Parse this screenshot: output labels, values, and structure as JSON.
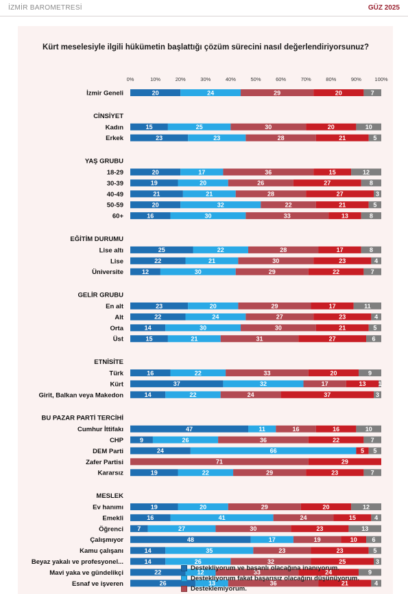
{
  "header": {
    "left": "İZMİR BAROMETRESİ",
    "right": "GÜZ 2025"
  },
  "chart_data": {
    "type": "bar",
    "orientation": "horizontal",
    "stacked": true,
    "title": "Kürt meselesiyle ilgili hükümetin başlattığı çözüm sürecini nasıl değerlendiriyorsunuz?",
    "xlim": [
      0,
      100
    ],
    "x_ticks": [
      "0%",
      "10%",
      "20%",
      "30%",
      "40%",
      "50%",
      "60%",
      "70%",
      "80%",
      "90%",
      "100%"
    ],
    "series": [
      {
        "name": "Destekliyorum ve başanlı olacağına inanıyorum.",
        "color": "#1f6fb2"
      },
      {
        "name": "Destekliyorum fakat başarısız olacağını düşünüyorum.",
        "color": "#2aa9e6"
      },
      {
        "name": "Desteklemiyorum.",
        "color": "#b24a52"
      },
      {
        "name": "",
        "color": "#c81e25"
      },
      {
        "name": "",
        "color": "#7f7f7f"
      }
    ],
    "groups": [
      {
        "title": "",
        "rows": [
          {
            "label": "İzmir Geneli",
            "values": [
              20,
              24,
              29,
              20,
              7
            ]
          }
        ]
      },
      {
        "title": "CİNSİYET",
        "rows": [
          {
            "label": "Kadın",
            "values": [
              15,
              25,
              30,
              20,
              10
            ]
          },
          {
            "label": "Erkek",
            "values": [
              23,
              23,
              28,
              21,
              5
            ]
          }
        ]
      },
      {
        "title": "YAŞ GRUBU",
        "rows": [
          {
            "label": "18-29",
            "values": [
              20,
              17,
              36,
              15,
              12
            ]
          },
          {
            "label": "30-39",
            "values": [
              19,
              20,
              26,
              27,
              8
            ]
          },
          {
            "label": "40-49",
            "values": [
              21,
              21,
              28,
              27,
              3
            ]
          },
          {
            "label": "50-59",
            "values": [
              20,
              32,
              22,
              21,
              5
            ]
          },
          {
            "label": "60+",
            "values": [
              16,
              30,
              33,
              13,
              8
            ]
          }
        ]
      },
      {
        "title": "EĞİTİM DURUMU",
        "rows": [
          {
            "label": "Lise altı",
            "values": [
              25,
              22,
              28,
              17,
              8
            ]
          },
          {
            "label": "Lise",
            "values": [
              22,
              21,
              30,
              23,
              4
            ]
          },
          {
            "label": "Üniversite",
            "values": [
              12,
              30,
              29,
              22,
              7
            ]
          }
        ]
      },
      {
        "title": "GELİR GRUBU",
        "rows": [
          {
            "label": "En alt",
            "values": [
              23,
              20,
              29,
              17,
              11
            ]
          },
          {
            "label": "Alt",
            "values": [
              22,
              24,
              27,
              23,
              4
            ]
          },
          {
            "label": "Orta",
            "values": [
              14,
              30,
              30,
              21,
              5
            ]
          },
          {
            "label": "Üst",
            "values": [
              15,
              21,
              31,
              27,
              6
            ]
          }
        ]
      },
      {
        "title": "ETNİSİTE",
        "rows": [
          {
            "label": "Türk",
            "values": [
              16,
              22,
              33,
              20,
              9
            ]
          },
          {
            "label": "Kürt",
            "values": [
              37,
              32,
              17,
              13,
              1
            ]
          },
          {
            "label": "Girit, Balkan veya Makedon",
            "values": [
              14,
              22,
              24,
              37,
              3
            ]
          }
        ]
      },
      {
        "title": "BU PAZAR PARTİ TERCİHİ",
        "rows": [
          {
            "label": "Cumhur İttifakı",
            "values": [
              47,
              11,
              16,
              16,
              10
            ]
          },
          {
            "label": "CHP",
            "values": [
              9,
              26,
              36,
              22,
              7
            ]
          },
          {
            "label": "DEM Parti",
            "values": [
              24,
              66,
              0,
              5,
              5
            ]
          },
          {
            "label": "Zafer Partisi",
            "values": [
              0,
              0,
              71,
              29,
              0
            ]
          },
          {
            "label": "Kararsız",
            "values": [
              19,
              22,
              29,
              23,
              7
            ]
          }
        ]
      },
      {
        "title": "MESLEK",
        "rows": [
          {
            "label": "Ev hanımı",
            "values": [
              19,
              20,
              29,
              20,
              12
            ]
          },
          {
            "label": "Emekli",
            "values": [
              16,
              41,
              24,
              15,
              4
            ]
          },
          {
            "label": "Öğrenci",
            "values": [
              7,
              27,
              30,
              23,
              13
            ]
          },
          {
            "label": "Çalışmıyor",
            "values": [
              48,
              17,
              19,
              10,
              6
            ]
          },
          {
            "label": "Kamu çalışanı",
            "values": [
              14,
              35,
              23,
              23,
              5
            ]
          },
          {
            "label": "Beyaz yakalı ve profesyonel...",
            "values": [
              14,
              26,
              32,
              25,
              3
            ]
          },
          {
            "label": "Mavi yaka ve gündelikçi",
            "values": [
              22,
              12,
              33,
              24,
              9
            ]
          },
          {
            "label": "Esnaf ve işveren",
            "values": [
              26,
              13,
              36,
              21,
              4
            ]
          }
        ]
      }
    ]
  }
}
